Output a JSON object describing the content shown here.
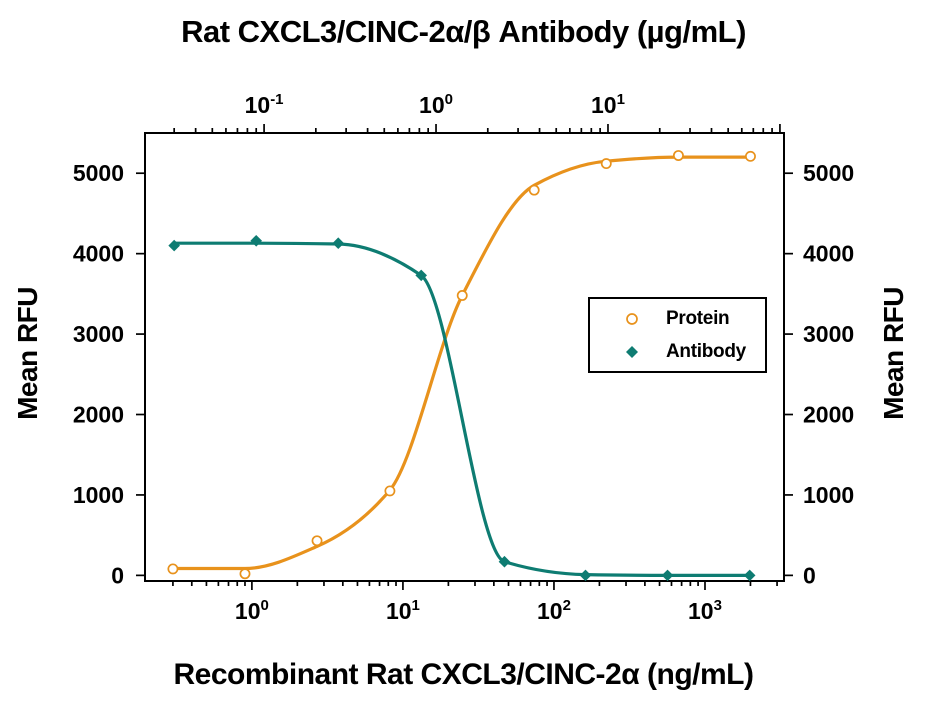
{
  "figure": {
    "top_axis_title": "Rat CXCL3/CINC-2α/β Antibody (µg/mL)",
    "bottom_axis_title": "Recombinant Rat CXCL3/CINC-2α (ng/mL)",
    "left_axis_title": "Mean RFU",
    "right_axis_title": "Mean RFU"
  },
  "colors": {
    "protein": "#E8921C",
    "antibody": "#0E7C72",
    "axis": "#000000",
    "background": "#FFFFFF"
  },
  "legend": {
    "position": "inside-right-middle",
    "items": [
      {
        "label": "Protein",
        "marker": "open-circle",
        "color": "#E8921C"
      },
      {
        "label": "Antibody",
        "marker": "filled-diamond",
        "color": "#0E7C72"
      }
    ]
  },
  "chart_data": {
    "type": "line",
    "grid": false,
    "axes": {
      "top_x": {
        "title": "Rat CXCL3/CINC-2α/β Antibody (µg/mL)",
        "scale": "log",
        "unit": "µg/mL",
        "range": [
          0.0203,
          105.6
        ],
        "major_ticks": [
          {
            "v": 0.1,
            "base": "10",
            "exp": "-1"
          },
          {
            "v": 1,
            "base": "10",
            "exp": "0"
          },
          {
            "v": 10,
            "base": "10",
            "exp": "1"
          }
        ],
        "tick_labels": [
          "10^-1",
          "10^0",
          "10^1"
        ]
      },
      "bottom_x": {
        "title": "Recombinant Rat CXCL3/CINC-2α (ng/mL)",
        "scale": "log",
        "unit": "ng/mL",
        "range": [
          0.196,
          3335
        ],
        "major_ticks": [
          {
            "v": 1,
            "base": "10",
            "exp": "0"
          },
          {
            "v": 10,
            "base": "10",
            "exp": "1"
          },
          {
            "v": 100,
            "base": "10",
            "exp": "2"
          },
          {
            "v": 1000,
            "base": "10",
            "exp": "3"
          }
        ],
        "tick_labels": [
          "10^0",
          "10^1",
          "10^2",
          "10^3"
        ]
      },
      "y": {
        "title": "Mean RFU",
        "scale": "linear",
        "range": [
          -70,
          5500
        ],
        "ticks": [
          0,
          1000,
          2000,
          3000,
          4000,
          5000
        ],
        "tick_labels": [
          "0",
          "1000",
          "2000",
          "3000",
          "4000",
          "5000"
        ],
        "mirrored_right_axis": true
      }
    },
    "series": [
      {
        "name": "Protein",
        "x_axis": "bottom_x",
        "marker": "open-circle",
        "color": "#E8921C",
        "x": [
          0.3,
          0.9,
          2.7,
          8.2,
          24.7,
          74,
          222,
          667,
          2000
        ],
        "y": [
          80,
          20,
          430,
          1050,
          3480,
          4790,
          5120,
          5220,
          5210
        ],
        "fit_curve": {
          "x": [
            0.3,
            0.9,
            2.7,
            8.2,
            24.7,
            74,
            222,
            667,
            2000
          ],
          "y": [
            85,
            85,
            360,
            1060,
            3480,
            4850,
            5150,
            5200,
            5200
          ]
        }
      },
      {
        "name": "Antibody",
        "x_axis": "top_x",
        "marker": "filled-diamond",
        "color": "#0E7C72",
        "x": [
          0.03,
          0.09,
          0.27,
          0.82,
          2.5,
          7.4,
          22.2,
          66.7
        ],
        "y": [
          4100,
          4160,
          4130,
          3730,
          170,
          0,
          0,
          0
        ],
        "fit_curve": {
          "x": [
            0.03,
            0.09,
            0.27,
            0.82,
            2.5,
            7.4,
            22.2,
            66.7
          ],
          "y": [
            4130,
            4130,
            4120,
            3730,
            170,
            10,
            0,
            0
          ]
        }
      }
    ]
  }
}
